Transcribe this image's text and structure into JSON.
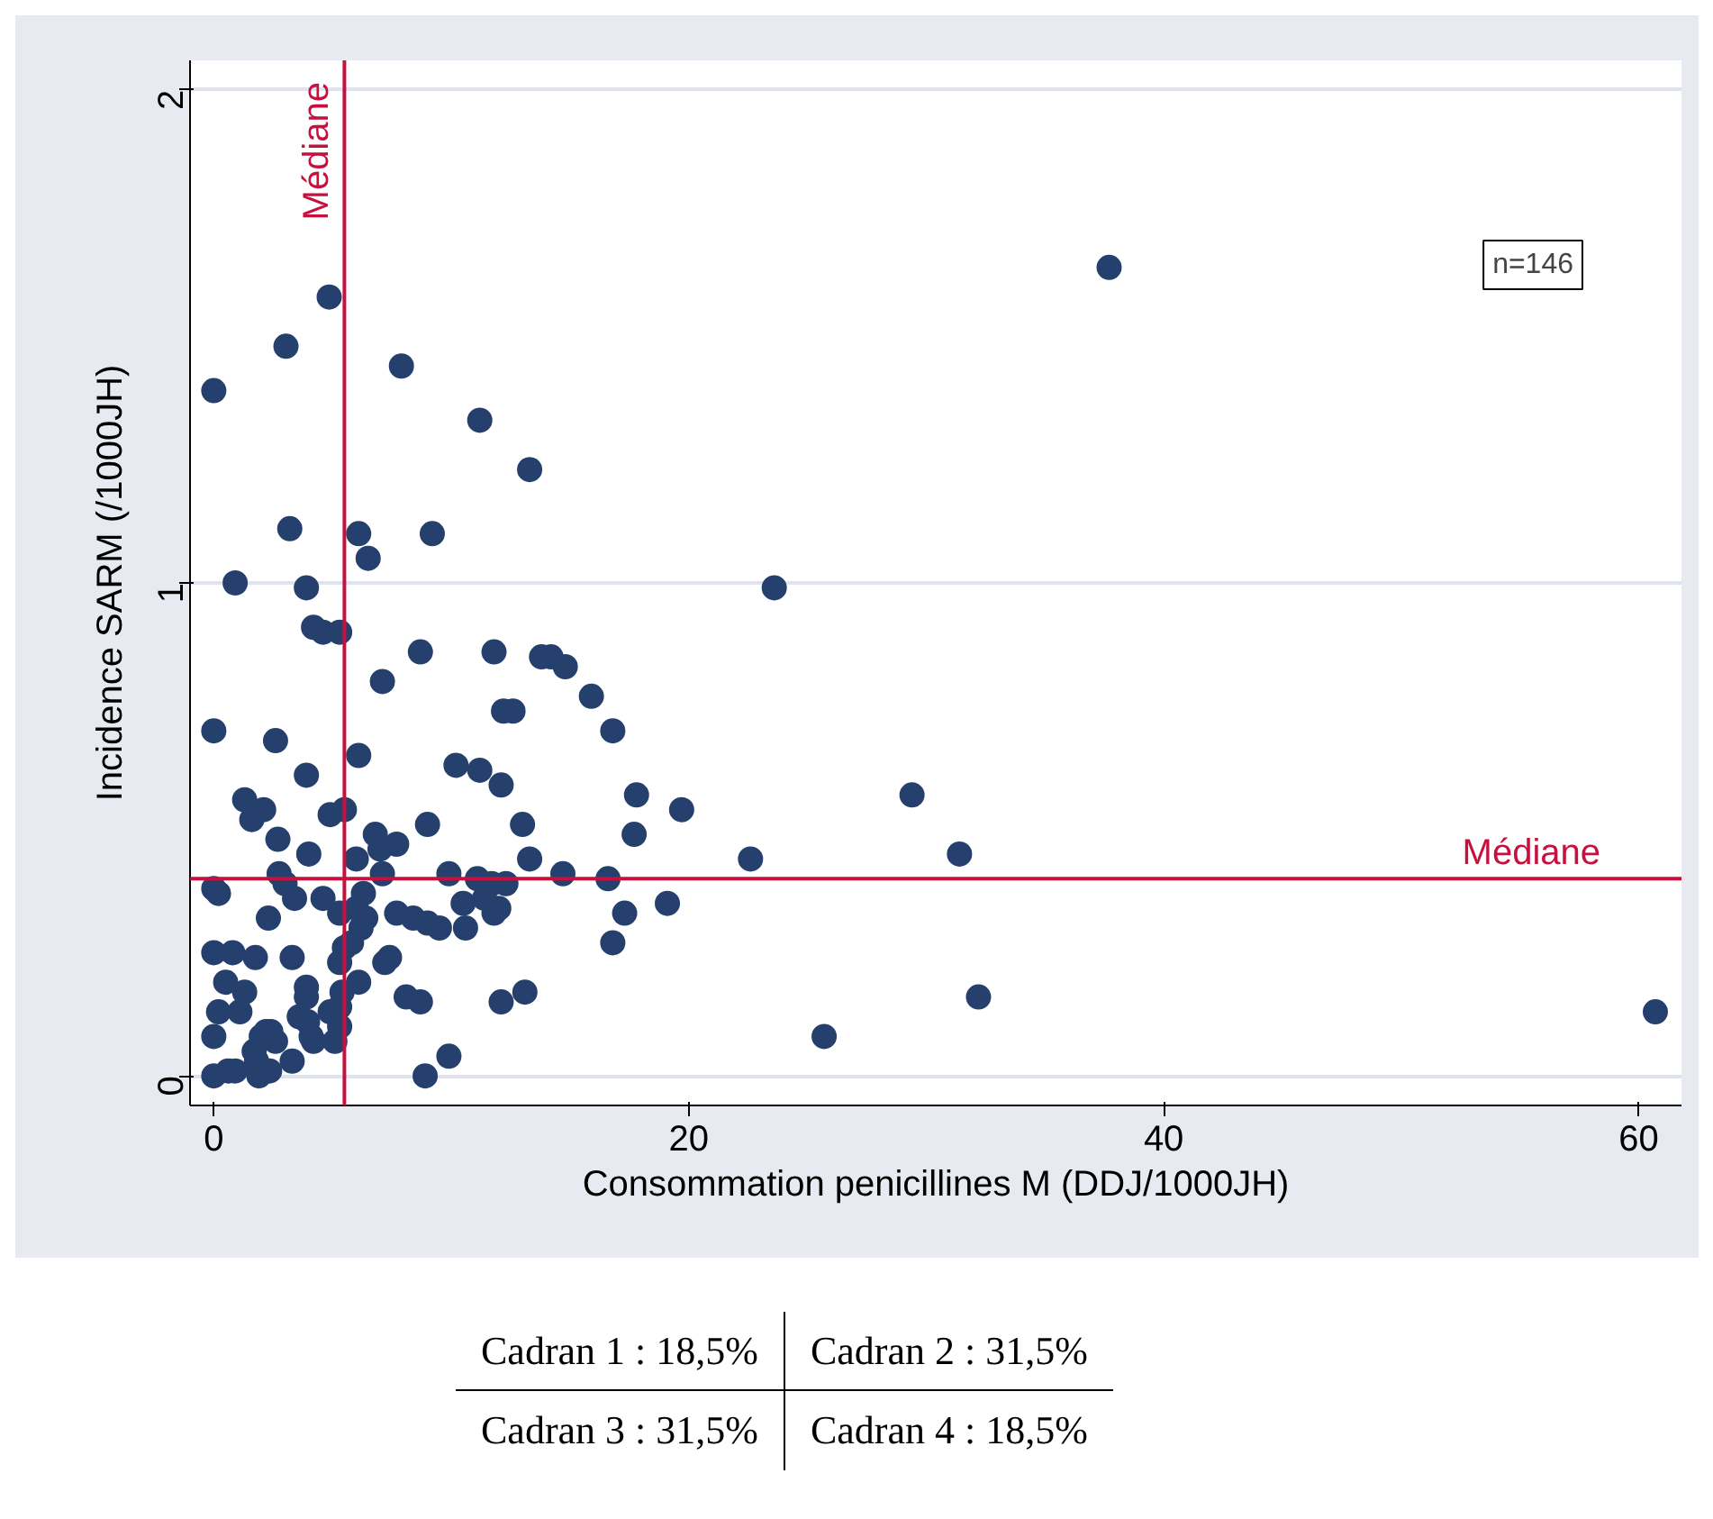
{
  "chart_data": {
    "type": "scatter",
    "xlabel": "Consommation penicillines M (DDJ/1000JH)",
    "ylabel": "Incidence SARM (/1000JH)",
    "xlim": [
      -1,
      61.8
    ],
    "ylim": [
      -0.06,
      2.06
    ],
    "xticks": [
      0,
      20,
      40,
      60
    ],
    "yticks": [
      0,
      1,
      2
    ],
    "grid": "y",
    "marker": "circle",
    "series": [
      {
        "color": "#26406e",
        "x": [
          4.86,
          37.7,
          3.04,
          0,
          7.9,
          11.2,
          13.3,
          3.2,
          6.1,
          9.2,
          6.5,
          0.9,
          3.9,
          23.6,
          4.2,
          4.6,
          5.3,
          8.7,
          11.8,
          13.8,
          14.2,
          14.8,
          7.1,
          15.9,
          12.2,
          12.6,
          0,
          16.8,
          2.6,
          6.1,
          10.2,
          11.2,
          12.1,
          3.9,
          17.8,
          29.4,
          1.3,
          2.1,
          5.5,
          4.9,
          1.6,
          19.7,
          2.7,
          6.8,
          7.7,
          9.0,
          13.0,
          17.7,
          4.0,
          6.0,
          7.0,
          7.1,
          13.3,
          22.6,
          31.4,
          2.75,
          3.0,
          9.9,
          11.1,
          11.7,
          12.3,
          14.7,
          16.6,
          0,
          0.2,
          3.4,
          4.6,
          5.3,
          6.0,
          6.4,
          7.7,
          8.4,
          9.0,
          9.5,
          10.6,
          10.5,
          11.4,
          11.8,
          12.0,
          17.3,
          19.1,
          2.3,
          6.3,
          0,
          0.8,
          1.75,
          3.3,
          5.5,
          5.3,
          5.8,
          6.2,
          7.4,
          7.2,
          16.8,
          0.5,
          1.3,
          3.9,
          3.9,
          5.4,
          6.1,
          8.1,
          8.7,
          12.1,
          13.1,
          32.2,
          0.2,
          1.1,
          3.6,
          4.9,
          5.3,
          0,
          2.0,
          2.2,
          2.4,
          4.1,
          5.1,
          25.7,
          60.7,
          9.9,
          3.3,
          0,
          0.6,
          0.9,
          1.9,
          2.35,
          8.9,
          1.8,
          1.7,
          2.6,
          3.95,
          5.3,
          4.2
        ],
        "values": [
          1.58,
          1.64,
          1.48,
          1.39,
          1.44,
          1.33,
          1.23,
          1.11,
          1.1,
          1.1,
          1.05,
          1.0,
          0.99,
          0.99,
          0.91,
          0.9,
          0.9,
          0.86,
          0.86,
          0.85,
          0.85,
          0.83,
          0.8,
          0.77,
          0.74,
          0.74,
          0.7,
          0.7,
          0.68,
          0.65,
          0.63,
          0.62,
          0.59,
          0.61,
          0.57,
          0.57,
          0.56,
          0.54,
          0.54,
          0.53,
          0.52,
          0.54,
          0.48,
          0.49,
          0.47,
          0.51,
          0.51,
          0.49,
          0.45,
          0.44,
          0.46,
          0.41,
          0.44,
          0.44,
          0.45,
          0.41,
          0.39,
          0.41,
          0.4,
          0.39,
          0.39,
          0.41,
          0.4,
          0.38,
          0.37,
          0.36,
          0.36,
          0.33,
          0.34,
          0.32,
          0.33,
          0.32,
          0.31,
          0.3,
          0.3,
          0.35,
          0.36,
          0.33,
          0.34,
          0.33,
          0.35,
          0.32,
          0.37,
          0.25,
          0.25,
          0.24,
          0.24,
          0.26,
          0.23,
          0.27,
          0.3,
          0.24,
          0.23,
          0.27,
          0.19,
          0.17,
          0.18,
          0.16,
          0.17,
          0.19,
          0.16,
          0.15,
          0.15,
          0.17,
          0.16,
          0.13,
          0.13,
          0.12,
          0.13,
          0.14,
          0.08,
          0.08,
          0.09,
          0.09,
          0.08,
          0.07,
          0.08,
          0.13,
          0.04,
          0.03,
          0.0,
          0.01,
          0.01,
          0.0,
          0.01,
          0.0,
          0.03,
          0.05,
          0.07,
          0.11,
          0.1,
          0.07
        ]
      }
    ],
    "ref_lines": [
      {
        "axis": "x",
        "value": 5.5,
        "label": "Médiane",
        "color": "#c8103e"
      },
      {
        "axis": "y",
        "value": 0.4,
        "label": "Médiane",
        "color": "#c8103e"
      }
    ],
    "annotations": [
      "n=146",
      "Cadran 1 : 18,5%",
      "Cadran 2 : 31,5%",
      "Cadran 3 : 31,5%",
      "Cadran 4 : 18,5%"
    ]
  }
}
